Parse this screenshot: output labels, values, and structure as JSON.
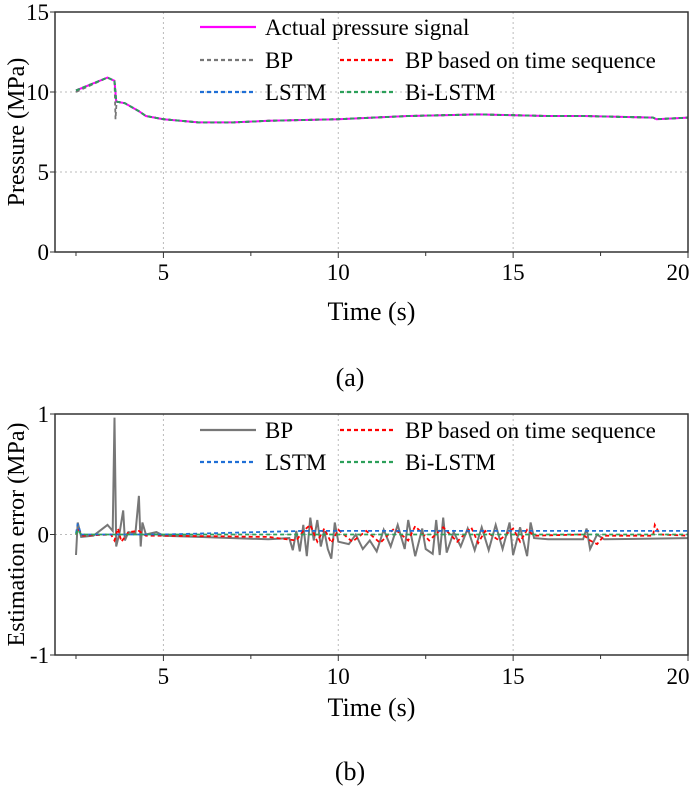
{
  "colors": {
    "actual": "#ff00ff",
    "bp": "#777777",
    "bp_seq": "#ff0000",
    "lstm": "#1f6fd6",
    "bilstm": "#2ca05a"
  },
  "chart_data": [
    {
      "type": "line",
      "panel_label": "(a)",
      "xlabel": "Time (s)",
      "ylabel": "Pressure (MPa)",
      "xlim": [
        1.9,
        20
      ],
      "ylim": [
        0,
        15
      ],
      "xticks": [
        5,
        10,
        15,
        20
      ],
      "yticks": [
        0,
        5,
        10,
        15
      ],
      "grid": true,
      "legend_position": "top-right",
      "series": [
        {
          "name": "Actual pressure signal",
          "key": "actual",
          "style": "solid",
          "x": [
            2.5,
            3.4,
            3.6,
            3.65,
            3.9,
            4.3,
            4.5,
            5,
            6,
            7,
            8,
            9,
            10,
            11,
            12,
            13,
            14,
            15,
            16,
            17,
            18,
            19,
            19.1,
            20
          ],
          "y": [
            10.1,
            10.9,
            10.7,
            9.4,
            9.3,
            8.8,
            8.5,
            8.3,
            8.1,
            8.1,
            8.2,
            8.25,
            8.3,
            8.4,
            8.5,
            8.55,
            8.6,
            8.55,
            8.5,
            8.5,
            8.45,
            8.4,
            8.3,
            8.4
          ]
        },
        {
          "name": "BP",
          "key": "bp",
          "style": "dash",
          "x": [
            2.5,
            3.4,
            3.6,
            3.63,
            3.66,
            3.9,
            4.3,
            4.5,
            5,
            6,
            7,
            8,
            9,
            10,
            11,
            12,
            13,
            14,
            15,
            16,
            17,
            18,
            19,
            19.1,
            20
          ],
          "y": [
            10.0,
            10.9,
            10.7,
            8.3,
            9.4,
            9.3,
            8.8,
            8.5,
            8.3,
            8.1,
            8.1,
            8.2,
            8.25,
            8.3,
            8.4,
            8.5,
            8.55,
            8.6,
            8.55,
            8.5,
            8.5,
            8.45,
            8.4,
            8.3,
            8.4
          ]
        },
        {
          "name": "BP based on time sequence",
          "key": "bp_seq",
          "style": "dash",
          "x": [
            2.5,
            3.4,
            3.6,
            3.65,
            3.9,
            4.3,
            4.5,
            5,
            6,
            7,
            8,
            9,
            10,
            11,
            12,
            13,
            14,
            15,
            16,
            17,
            18,
            19,
            19.1,
            20
          ],
          "y": [
            10.1,
            10.9,
            10.7,
            9.4,
            9.3,
            8.8,
            8.5,
            8.3,
            8.1,
            8.1,
            8.2,
            8.25,
            8.3,
            8.4,
            8.5,
            8.55,
            8.6,
            8.55,
            8.5,
            8.5,
            8.45,
            8.4,
            8.3,
            8.4
          ]
        },
        {
          "name": "LSTM",
          "key": "lstm",
          "style": "dash",
          "x": [
            2.5,
            3.4,
            3.6,
            3.65,
            3.9,
            4.3,
            4.5,
            5,
            6,
            7,
            8,
            9,
            10,
            11,
            12,
            13,
            14,
            15,
            16,
            17,
            18,
            19,
            19.1,
            20
          ],
          "y": [
            10.1,
            10.9,
            10.7,
            9.4,
            9.3,
            8.8,
            8.5,
            8.3,
            8.1,
            8.1,
            8.2,
            8.25,
            8.3,
            8.4,
            8.5,
            8.55,
            8.6,
            8.55,
            8.5,
            8.5,
            8.45,
            8.4,
            8.3,
            8.4
          ]
        },
        {
          "name": "Bi-LSTM",
          "key": "bilstm",
          "style": "dash",
          "x": [
            2.5,
            3.4,
            3.6,
            3.65,
            3.9,
            4.3,
            4.5,
            5,
            6,
            7,
            8,
            9,
            10,
            11,
            12,
            13,
            14,
            15,
            16,
            17,
            18,
            19,
            19.1,
            20
          ],
          "y": [
            10.1,
            10.9,
            10.7,
            9.4,
            9.3,
            8.8,
            8.5,
            8.3,
            8.1,
            8.1,
            8.2,
            8.25,
            8.3,
            8.4,
            8.5,
            8.55,
            8.6,
            8.55,
            8.5,
            8.5,
            8.45,
            8.4,
            8.3,
            8.4
          ]
        }
      ]
    },
    {
      "type": "line",
      "panel_label": "(b)",
      "xlabel": "Time (s)",
      "ylabel": "Estimation error (MPa)",
      "xlim": [
        1.9,
        20
      ],
      "ylim": [
        -1,
        1
      ],
      "xticks": [
        5,
        10,
        15,
        20
      ],
      "yticks": [
        -1,
        0,
        1
      ],
      "grid": true,
      "legend_position": "top-right",
      "series": [
        {
          "name": "BP",
          "key": "bp",
          "style": "solid",
          "x": [
            2.5,
            2.55,
            2.65,
            3,
            3.4,
            3.55,
            3.6,
            3.65,
            3.75,
            3.85,
            3.9,
            4.0,
            4.2,
            4.3,
            4.35,
            4.4,
            4.5,
            4.8,
            5,
            6,
            7,
            8,
            8.6,
            8.7,
            8.8,
            8.9,
            9.0,
            9.1,
            9.2,
            9.3,
            9.4,
            9.5,
            9.6,
            9.7,
            9.8,
            9.9,
            10,
            10.3,
            10.5,
            10.7,
            10.9,
            11.1,
            11.3,
            11.5,
            11.7,
            11.9,
            12,
            12.2,
            12.4,
            12.5,
            12.7,
            12.8,
            12.9,
            13.0,
            13.1,
            13.3,
            13.5,
            13.7,
            13.9,
            14.1,
            14.3,
            14.5,
            14.7,
            14.9,
            15,
            15.2,
            15.4,
            15.5,
            15.6,
            16,
            17,
            17.1,
            17.2,
            17.4,
            17.6,
            20
          ],
          "y": [
            -0.17,
            0.1,
            -0.02,
            -0.01,
            0.08,
            0.03,
            0.97,
            -0.1,
            0.02,
            0.2,
            -0.05,
            0.02,
            0.01,
            0.32,
            -0.1,
            0.1,
            0.0,
            0.02,
            -0.01,
            -0.02,
            -0.03,
            -0.04,
            -0.03,
            -0.13,
            0.03,
            -0.14,
            0.08,
            -0.18,
            0.14,
            -0.05,
            0.12,
            -0.1,
            0.03,
            -0.12,
            -0.2,
            0.1,
            -0.06,
            -0.08,
            0.0,
            -0.12,
            -0.05,
            -0.14,
            0.04,
            -0.1,
            0.08,
            -0.12,
            0.12,
            -0.18,
            0.05,
            -0.12,
            -0.16,
            0.12,
            -0.17,
            0.14,
            -0.15,
            0.02,
            -0.1,
            0.05,
            -0.13,
            0.06,
            -0.13,
            0.08,
            -0.12,
            0.1,
            -0.17,
            0.06,
            -0.18,
            0.1,
            -0.03,
            -0.04,
            -0.04,
            0.05,
            -0.12,
            0.0,
            -0.04,
            -0.03
          ]
        },
        {
          "name": "BP based on time sequence",
          "key": "bp_seq",
          "style": "dash",
          "x": [
            2.5,
            2.55,
            2.7,
            3.5,
            3.6,
            3.7,
            3.8,
            4.0,
            4.3,
            4.5,
            5,
            8,
            8.8,
            9.0,
            9.2,
            9.4,
            9.6,
            9.8,
            10,
            10.4,
            10.8,
            11.2,
            11.6,
            12,
            12.2,
            12.6,
            13,
            13.4,
            13.8,
            14,
            14.2,
            14.6,
            15,
            15.2,
            15.4,
            15.6,
            17,
            17.2,
            17.4,
            17.6,
            19,
            19.05,
            19.2,
            20
          ],
          "y": [
            0.0,
            0.05,
            -0.01,
            0.0,
            -0.05,
            0.05,
            -0.06,
            0.02,
            0.03,
            -0.01,
            -0.01,
            -0.02,
            -0.05,
            0.03,
            0.08,
            -0.06,
            0.05,
            -0.07,
            0.04,
            -0.06,
            0.03,
            -0.07,
            0.05,
            -0.05,
            0.07,
            -0.05,
            0.06,
            -0.06,
            0.06,
            -0.07,
            0.03,
            -0.05,
            0.05,
            -0.06,
            0.04,
            -0.01,
            0.0,
            -0.05,
            -0.08,
            -0.01,
            -0.01,
            0.08,
            0.0,
            -0.01
          ]
        },
        {
          "name": "LSTM",
          "key": "lstm",
          "style": "dash",
          "x": [
            2.5,
            2.55,
            2.65,
            3,
            5,
            9,
            20
          ],
          "y": [
            0.01,
            0.09,
            0.0,
            0.0,
            0.0,
            0.03,
            0.03
          ]
        },
        {
          "name": "Bi-LSTM",
          "key": "bilstm",
          "style": "dash",
          "x": [
            2.5,
            2.55,
            2.65,
            3,
            5,
            10,
            15,
            20
          ],
          "y": [
            0.0,
            0.04,
            0.0,
            0.0,
            0.0,
            0.0,
            0.0,
            0.0
          ]
        }
      ]
    }
  ]
}
